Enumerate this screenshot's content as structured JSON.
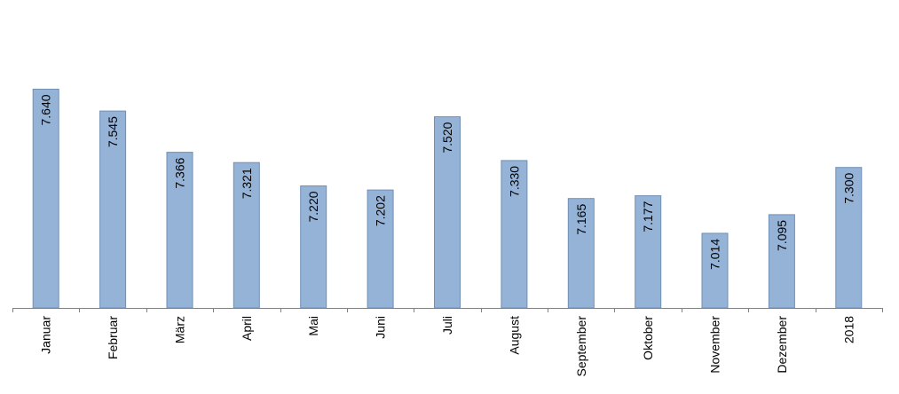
{
  "chart_data": {
    "type": "bar",
    "categories": [
      "Januar",
      "Februar",
      "März",
      "April",
      "Mai",
      "Juni",
      "Juli",
      "August",
      "September",
      "Oktober",
      "November",
      "Dezember",
      "2018"
    ],
    "values": [
      7640,
      7545,
      7366,
      7321,
      7220,
      7202,
      7520,
      7330,
      7165,
      7177,
      7014,
      7095,
      7300
    ],
    "value_labels": [
      "7.640",
      "7.545",
      "7.366",
      "7.321",
      "7.220",
      "7.202",
      "7.520",
      "7.330",
      "7.165",
      "7.177",
      "7.014",
      "7.095",
      "7.300"
    ],
    "title": "",
    "xlabel": "",
    "ylabel": "",
    "ylim": [
      6690,
      7950
    ],
    "grid": false,
    "legend": "none",
    "bar_color": "#95b3d7",
    "bar_border_color": "#6f8fb5",
    "axis_color": "#808080"
  }
}
